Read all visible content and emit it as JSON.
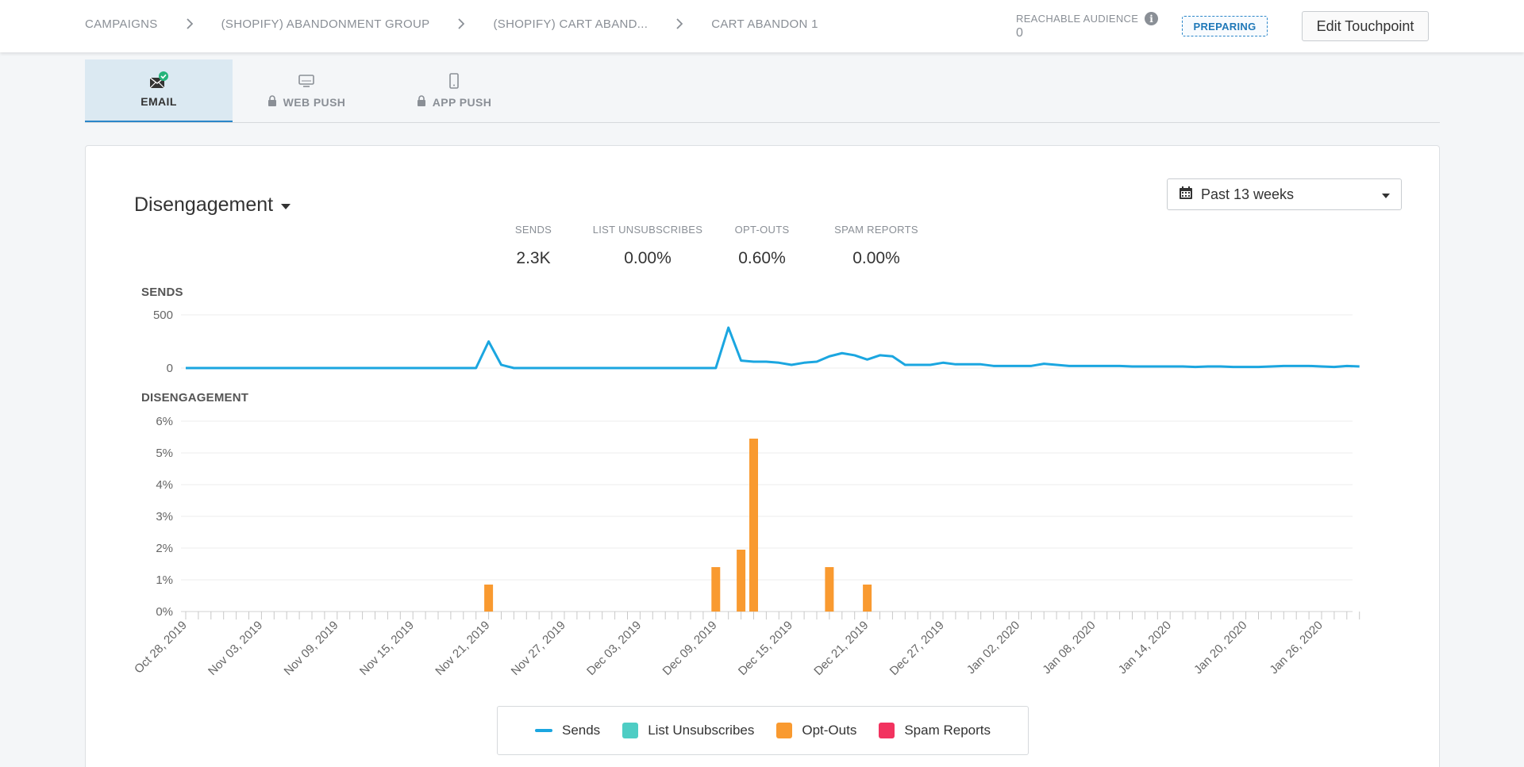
{
  "breadcrumbs": [
    {
      "label": "CAMPAIGNS"
    },
    {
      "label": "(SHOPIFY) ABANDONMENT GROUP"
    },
    {
      "label": "(SHOPIFY) CART ABAND..."
    },
    {
      "label": "CART ABANDON 1"
    }
  ],
  "header": {
    "reachable_label": "REACHABLE AUDIENCE",
    "reachable_value": "0",
    "status": "PREPARING",
    "edit_button": "Edit Touchpoint"
  },
  "tabs": [
    {
      "label": "EMAIL",
      "icon": "email-check-icon",
      "locked": false,
      "active": true
    },
    {
      "label": "WEB PUSH",
      "icon": "monitor-icon",
      "locked": true,
      "active": false
    },
    {
      "label": "APP PUSH",
      "icon": "phone-icon",
      "locked": true,
      "active": false
    }
  ],
  "card": {
    "metric_dropdown": "Disengagement",
    "date_range": "Past 13 weeks"
  },
  "stats": [
    {
      "label": "SENDS",
      "value": "2.3K"
    },
    {
      "label": "LIST UNSUBSCRIBES",
      "value": "0.00%"
    },
    {
      "label": "OPT-OUTS",
      "value": "0.60%"
    },
    {
      "label": "SPAM REPORTS",
      "value": "0.00%"
    }
  ],
  "colors": {
    "sends": "#1ba6e0",
    "list_unsubscribes": "#4ecdc4",
    "opt_outs": "#f99a30",
    "spam_reports": "#f2335f",
    "accent": "#2a86c9"
  },
  "chart_data": [
    {
      "type": "line",
      "title": "SENDS",
      "ylim": [
        0,
        500
      ],
      "yticks": [
        "500",
        "0"
      ],
      "x_start": "Oct 28, 2019",
      "x_labels": [
        "Oct 28, 2019",
        "Nov 03, 2019",
        "Nov 09, 2019",
        "Nov 15, 2019",
        "Nov 21, 2019",
        "Nov 27, 2019",
        "Dec 03, 2019",
        "Dec 09, 2019",
        "Dec 15, 2019",
        "Dec 21, 2019",
        "Dec 27, 2019",
        "Jan 02, 2020",
        "Jan 08, 2020",
        "Jan 14, 2020",
        "Jan 20, 2020",
        "Jan 26, 2020"
      ],
      "series": [
        {
          "name": "Sends",
          "values": [
            0,
            0,
            0,
            0,
            0,
            0,
            0,
            0,
            0,
            0,
            0,
            0,
            0,
            0,
            0,
            0,
            0,
            0,
            0,
            0,
            0,
            0,
            0,
            0,
            250,
            30,
            0,
            0,
            0,
            0,
            0,
            0,
            0,
            0,
            0,
            0,
            0,
            0,
            0,
            0,
            0,
            0,
            0,
            380,
            70,
            60,
            60,
            50,
            30,
            50,
            60,
            110,
            140,
            120,
            80,
            120,
            110,
            30,
            30,
            30,
            50,
            35,
            35,
            35,
            20,
            20,
            20,
            20,
            40,
            30,
            20,
            20,
            20,
            20,
            20,
            15,
            15,
            15,
            15,
            15,
            10,
            15,
            15,
            10,
            10,
            10,
            15,
            20,
            20,
            20,
            15,
            10,
            20,
            15
          ]
        }
      ]
    },
    {
      "type": "bar",
      "title": "DISENGAGEMENT",
      "ylim": [
        0,
        6
      ],
      "yticks": [
        "6%",
        "5%",
        "4%",
        "3%",
        "2%",
        "1%",
        "0%"
      ],
      "x_start": "Oct 28, 2019",
      "series": [
        {
          "name": "List Unsubscribes",
          "points": []
        },
        {
          "name": "Opt-Outs",
          "points": [
            {
              "x": "Nov 21, 2019",
              "y": 0.85
            },
            {
              "x": "Dec 09, 2019",
              "y": 1.4
            },
            {
              "x": "Dec 11, 2019",
              "y": 1.95
            },
            {
              "x": "Dec 12, 2019",
              "y": 5.45
            },
            {
              "x": "Dec 18, 2019",
              "y": 1.4
            },
            {
              "x": "Dec 21, 2019",
              "y": 0.85
            }
          ]
        },
        {
          "name": "Spam Reports",
          "points": []
        }
      ]
    }
  ],
  "chart_labels": {
    "sends": "SENDS",
    "disengagement": "DISENGAGEMENT"
  },
  "legend": [
    {
      "label": "Sends",
      "kind": "line",
      "color": "#1ba6e0"
    },
    {
      "label": "List Unsubscribes",
      "kind": "box",
      "color": "#4ecdc4"
    },
    {
      "label": "Opt-Outs",
      "kind": "box",
      "color": "#f99a30"
    },
    {
      "label": "Spam Reports",
      "kind": "box",
      "color": "#f2335f"
    }
  ]
}
